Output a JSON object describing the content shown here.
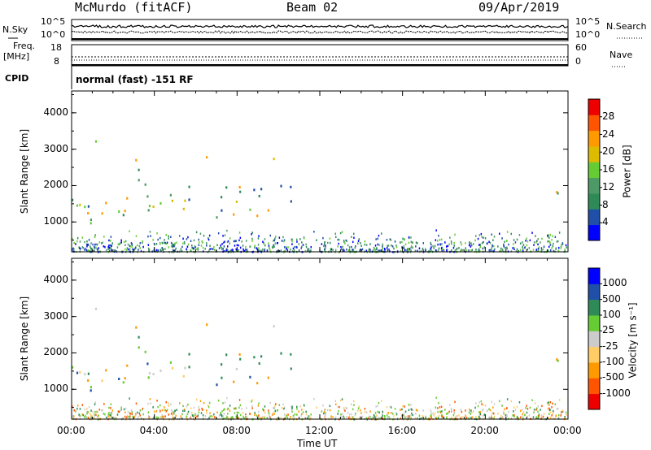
{
  "header": {
    "station": "McMurdo (fitACF)",
    "beam": "Beam 02",
    "date": "09/Apr/2019"
  },
  "top_panels": {
    "nsky_label": "N.Sky",
    "nsearch_label": "N.Search",
    "noise_ticks": [
      "10^5",
      "10^0"
    ],
    "freq_label": "Freq.",
    "freq_unit": "[MHz]",
    "freq_ticks": [
      "18",
      "8"
    ],
    "nave_label": "Nave",
    "nave_ticks": [
      "60",
      "0"
    ],
    "cpid_label": "CPID",
    "cpid_value": "normal (fast) -151 RF"
  },
  "colors": {
    "power": [
      "#0000ff",
      "#1f4fa8",
      "#2e8b57",
      "#4d9a66",
      "#66cc33",
      "#ddbb00",
      "#ff9900",
      "#ff5500",
      "#ee0000"
    ],
    "velocity": [
      "#ee0000",
      "#ff5500",
      "#ff9900",
      "#ffcc66",
      "#cccccc",
      "#66cc33",
      "#2e8b57",
      "#1f4fa8",
      "#0000ff"
    ]
  },
  "chart_data": [
    {
      "type": "heatmap",
      "panel": "power",
      "ylabel": "Slant Range [km]",
      "ylim": [
        180,
        4600
      ],
      "yticks": [
        "1000",
        "2000",
        "3000",
        "4000"
      ],
      "colorbar_label": "Power [dB]",
      "colorbar_ticks": [
        "4",
        "8",
        "12",
        "16",
        "20",
        "24",
        "28"
      ],
      "colorbar_range": [
        0,
        32
      ]
    },
    {
      "type": "heatmap",
      "panel": "velocity",
      "ylabel": "Slant Range [km]",
      "ylim": [
        180,
        4600
      ],
      "yticks": [
        "1000",
        "2000",
        "3000",
        "4000"
      ],
      "colorbar_label": "Velocity [m s⁻¹]",
      "colorbar_ticks": [
        "1000",
        "500",
        "100",
        "25",
        "-25",
        "-100",
        "-500",
        "-1000"
      ]
    }
  ],
  "x_axis": {
    "label": "Time UT",
    "ticks": [
      "00:00",
      "04:00",
      "08:00",
      "12:00",
      "16:00",
      "20:00",
      "00:00"
    ],
    "range_hours": [
      0,
      24
    ]
  }
}
